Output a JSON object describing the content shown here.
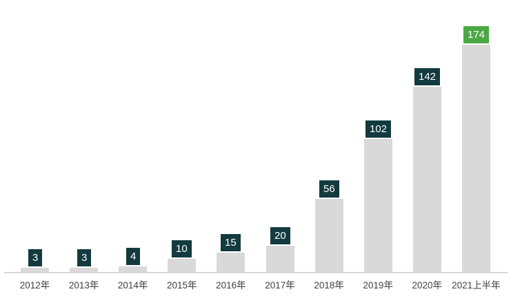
{
  "chart_data": {
    "type": "bar",
    "title": "",
    "xlabel": "",
    "ylabel": "",
    "categories": [
      "2012年",
      "2013年",
      "2014年",
      "2015年",
      "2016年",
      "2017年",
      "2018年",
      "2019年",
      "2020年",
      "2021上半年"
    ],
    "values": [
      3,
      3,
      4,
      10,
      15,
      20,
      56,
      102,
      142,
      174
    ],
    "ylim": [
      0,
      183
    ],
    "grid": false,
    "legend": "none",
    "data_labels_visible": true,
    "colors": {
      "bar_fill": "#d9d9d9",
      "data_label_bg": "#133a3f",
      "data_label_bg_highlight": "#4ca845",
      "data_label_text": "#ffffff",
      "axis_line": "#d9d9d9",
      "tick_label_text": "#3f3f3f",
      "background": "#ffffff"
    },
    "highlight_index": 9
  }
}
